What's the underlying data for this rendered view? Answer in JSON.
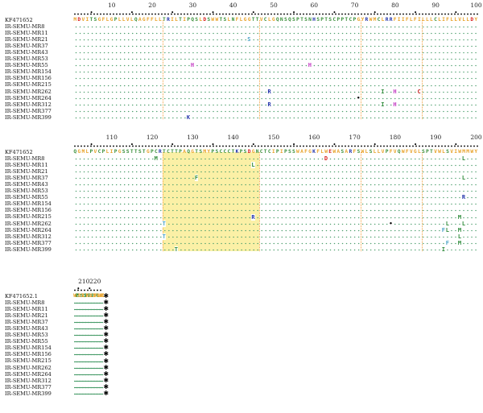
{
  "alignment": {
    "blocks": [
      {
        "ruler_numbers": [
          "10",
          "20",
          "30",
          "40",
          "50",
          "60",
          "70",
          "80",
          "90",
          "100"
        ],
        "reference": {
          "name": "KF471652",
          "sequence": "MDVITSGFLGPLLVLQAGFFLLTRILTIPQSLDSWWTSLNFLGGTTVCLGQNSQSPTSNHSPTSCPPTCPGYRWMCLRRFIIFLFILLLCLIFLLVLLDY"
        },
        "samples": [
          "IR-SEMU-MR8",
          "IR-SEMU-MR11",
          "IR-SEMU-MR21",
          "IR-SEMU-MR37",
          "IR-SEMU-MR43",
          "IR-SEMU-MR53",
          "IR-SEMU-MR55",
          "IR-SEMU-MR154",
          "IR-SEMU-MR156",
          "IR-SEMU-MR215",
          "IR-SEMU-MR262",
          "IR-SEMU-MR264",
          "IR-SEMU-MR312",
          "IR-SEMU-MR377",
          "IR-SEMU-MR399"
        ],
        "substitutions": [
          {
            "row": 2,
            "pos": 44,
            "aa": "S",
            "color": "#4aa3c7"
          },
          {
            "row": 6,
            "pos": 30,
            "aa": "H",
            "color": "#c33cc3"
          },
          {
            "row": 6,
            "pos": 59,
            "aa": "H",
            "color": "#c33cc3"
          },
          {
            "row": 10,
            "pos": 49,
            "aa": "R",
            "color": "#2233aa"
          },
          {
            "row": 10,
            "pos": 77,
            "aa": "I",
            "color": "#2e8b3a"
          },
          {
            "row": 10,
            "pos": 80,
            "aa": "H",
            "color": "#c33cc3"
          },
          {
            "row": 10,
            "pos": 86,
            "aa": "C",
            "color": "#c42525"
          },
          {
            "row": 11,
            "pos": 71,
            "aa": "•",
            "color": "#000000"
          },
          {
            "row": 12,
            "pos": 49,
            "aa": "R",
            "color": "#2233aa"
          },
          {
            "row": 12,
            "pos": 77,
            "aa": "I",
            "color": "#2e8b3a"
          },
          {
            "row": 12,
            "pos": 80,
            "aa": "H",
            "color": "#c33cc3"
          },
          {
            "row": 14,
            "pos": 29,
            "aa": "K",
            "color": "#2233aa"
          }
        ]
      },
      {
        "ruler_numbers": [
          "110",
          "120",
          "130",
          "140",
          "150",
          "160",
          "170",
          "180",
          "190",
          "200"
        ],
        "reference": {
          "name": "KF471652",
          "sequence": "QGMLPVCPLIPGSSTTSTGPCRTCTTPAQGTSMYPSCCCTKPSDGNCTCIPIPSSWAFGKFLWEWASARFSWLSLLVPFVQWFVGLSPTVWLSVIWMMWY"
        },
        "samples": [
          "IR-SEMU-MR8",
          "IR-SEMU-MR11",
          "IR-SEMU-MR21",
          "IR-SEMU-MR37",
          "IR-SEMU-MR43",
          "IR-SEMU-MR53",
          "IR-SEMU-MR55",
          "IR-SEMU-MR154",
          "IR-SEMU-MR156",
          "IR-SEMU-MR215",
          "IR-SEMU-MR262",
          "IR-SEMU-MR264",
          "IR-SEMU-MR312",
          "IR-SEMU-MR377",
          "IR-SEMU-MR399"
        ],
        "substitutions": [
          {
            "row": 0,
            "pos": 121,
            "aa": "M",
            "color": "#2e8b3a"
          },
          {
            "row": 1,
            "pos": 145,
            "aa": "L",
            "color": "#2e8b3a"
          },
          {
            "row": 0,
            "pos": 163,
            "aa": "D",
            "color": "#d82020"
          },
          {
            "row": 0,
            "pos": 197,
            "aa": "L",
            "color": "#2e8b3a"
          },
          {
            "row": 3,
            "pos": 131,
            "aa": "F",
            "color": "#2e8b3a"
          },
          {
            "row": 3,
            "pos": 197,
            "aa": "L",
            "color": "#2e8b3a"
          },
          {
            "row": 6,
            "pos": 197,
            "aa": "R",
            "color": "#2233aa"
          },
          {
            "row": 9,
            "pos": 145,
            "aa": "R",
            "color": "#2233aa"
          },
          {
            "row": 9,
            "pos": 196,
            "aa": "M",
            "color": "#2e8b3a"
          },
          {
            "row": 10,
            "pos": 123,
            "aa": "T",
            "color": "#4aa3c7"
          },
          {
            "row": 10,
            "pos": 179,
            "aa": "•",
            "color": "#000000"
          },
          {
            "row": 10,
            "pos": 193,
            "aa": "L",
            "color": "#2e8b3a"
          },
          {
            "row": 10,
            "pos": 197,
            "aa": "L",
            "color": "#2e8b3a"
          },
          {
            "row": 11,
            "pos": 192,
            "aa": "F",
            "color": "#4aa3c7"
          },
          {
            "row": 11,
            "pos": 193,
            "aa": "L",
            "color": "#2e8b3a"
          },
          {
            "row": 11,
            "pos": 196,
            "aa": "M",
            "color": "#2e8b3a"
          },
          {
            "row": 12,
            "pos": 123,
            "aa": "T",
            "color": "#4aa3c7"
          },
          {
            "row": 12,
            "pos": 196,
            "aa": "L",
            "color": "#2e8b3a"
          },
          {
            "row": 13,
            "pos": 193,
            "aa": "F",
            "color": "#4aa3c7"
          },
          {
            "row": 13,
            "pos": 196,
            "aa": "M",
            "color": "#2e8b3a"
          },
          {
            "row": 14,
            "pos": 126,
            "aa": "T",
            "color": "#2e8b3a"
          },
          {
            "row": 14,
            "pos": 192,
            "aa": "I",
            "color": "#2e8b3a"
          }
        ]
      },
      {
        "ruler_numbers": [
          "210",
          "220"
        ],
        "reference": {
          "name": "KF471652.1",
          "sequence": "WGPSLYSILSPFLPLLPIFFCLWVYI"
        },
        "samples": [
          "IR-SEMU-MR8",
          "IR-SEMU-MR11",
          "IR-SEMU-MR21",
          "IR-SEMU-MR37",
          "IR-SEMU-MR43",
          "IR-SEMU-MR53",
          "IR-SEMU-MR55",
          "IR-SEMU-MR154",
          "IR-SEMU-MR156",
          "IR-SEMU-MR215",
          "IR-SEMU-MR262",
          "IR-SEMU-MR264",
          "IR-SEMU-MR312",
          "IR-SEMU-MR377",
          "IR-SEMU-MR399"
        ],
        "substitutions": []
      }
    ],
    "colors": {
      "hydrophobic": "#e8a32b",
      "polar": "#3a8f3a",
      "positive": "#2233aa",
      "negative": "#d82020",
      "special": "#c33cc3",
      "highlight": "#fbf0a6",
      "stop": "#000000"
    }
  }
}
